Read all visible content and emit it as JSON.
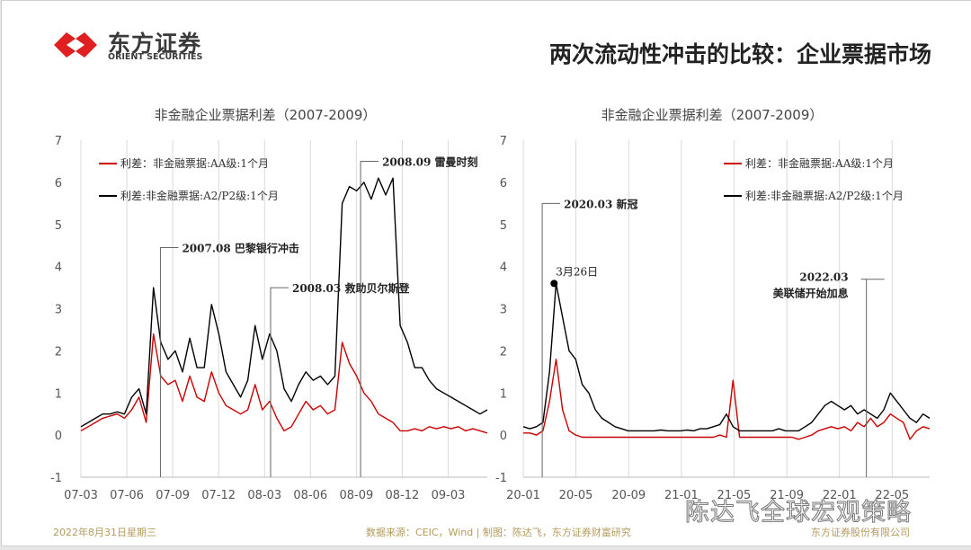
{
  "header": {
    "brand_cn": "东方证券",
    "brand_en": "ORIENT SECURITIES",
    "title": "两次流动性冲击的比较：企业票据市场"
  },
  "footer": {
    "date": "2022年8月31日星期三",
    "source": "数据来源：CEIC，Wind | 制图：陈达飞，东方证券财富研究",
    "company": "东方证券股份有限公司",
    "watermark": "陈达飞全球宏观策略"
  },
  "colors": {
    "red": "#cc0000",
    "black": "#000000",
    "grid": "#d9d9d9"
  },
  "chart_data": [
    {
      "type": "line",
      "title": "非金融企业票据利差（2007-2009）",
      "ylim": [
        -1,
        7
      ],
      "yticks": [
        "-1",
        "0",
        "1",
        "2",
        "3",
        "4",
        "5",
        "6",
        "7"
      ],
      "xlim": [
        2007.167,
        2009.38
      ],
      "xticks": [
        {
          "x": 2007.167,
          "label": "07-03"
        },
        {
          "x": 2007.417,
          "label": "07-06"
        },
        {
          "x": 2007.667,
          "label": "07-09"
        },
        {
          "x": 2007.917,
          "label": "07-12"
        },
        {
          "x": 2008.167,
          "label": "08-03"
        },
        {
          "x": 2008.417,
          "label": "08-06"
        },
        {
          "x": 2008.667,
          "label": "08-09"
        },
        {
          "x": 2008.917,
          "label": "08-12"
        },
        {
          "x": 2009.167,
          "label": "09-03"
        }
      ],
      "legend": "top-left",
      "series": [
        {
          "name": "利差：非金融票据:AA级:1个月",
          "color": "#cc0000",
          "x_start": 2007.167,
          "x_end": 2009.38,
          "values": [
            0.1,
            0.2,
            0.3,
            0.4,
            0.45,
            0.5,
            0.4,
            0.6,
            0.9,
            0.3,
            2.4,
            1.4,
            1.2,
            1.3,
            0.8,
            1.4,
            0.9,
            0.8,
            1.5,
            1.0,
            0.7,
            0.6,
            0.5,
            0.6,
            1.2,
            0.6,
            0.8,
            0.4,
            0.1,
            0.2,
            0.5,
            0.8,
            0.6,
            0.7,
            0.5,
            0.6,
            2.2,
            1.7,
            1.4,
            1.0,
            0.8,
            0.5,
            0.4,
            0.3,
            0.1,
            0.1,
            0.15,
            0.1,
            0.2,
            0.15,
            0.2,
            0.15,
            0.2,
            0.1,
            0.15,
            0.1,
            0.05
          ]
        },
        {
          "name": "利差:非金融票据:A2/P2级:1个月",
          "color": "#000000",
          "x_start": 2007.167,
          "x_end": 2009.38,
          "values": [
            0.2,
            0.3,
            0.4,
            0.5,
            0.5,
            0.55,
            0.5,
            0.9,
            1.1,
            0.5,
            3.5,
            2.2,
            1.8,
            2.0,
            1.5,
            2.3,
            1.6,
            1.6,
            3.1,
            2.4,
            1.5,
            1.2,
            0.9,
            1.3,
            2.6,
            1.8,
            2.4,
            2.0,
            1.1,
            0.8,
            1.2,
            1.5,
            1.3,
            1.4,
            1.2,
            1.4,
            5.5,
            5.9,
            5.8,
            6.0,
            5.6,
            6.1,
            5.7,
            6.1,
            2.6,
            2.2,
            1.6,
            1.6,
            1.3,
            1.1,
            1.0,
            0.9,
            0.8,
            0.7,
            0.6,
            0.5,
            0.6
          ]
        }
      ],
      "annotations": [
        {
          "x": 2007.6,
          "y": 4.45,
          "label": "2007.08 巴黎银行冲击"
        },
        {
          "x": 2008.2,
          "y": 3.5,
          "label": "2008.03 救助贝尔斯登"
        },
        {
          "x": 2008.69,
          "y": 6.5,
          "label": "2008.09 雷曼时刻"
        }
      ]
    },
    {
      "type": "line",
      "title": "非金融企业票据利差（2007-2009）",
      "ylim": [
        -1,
        7
      ],
      "yticks": [
        "-1",
        "0",
        "1",
        "2",
        "3",
        "4",
        "5",
        "6",
        "7"
      ],
      "xlim": [
        2020.0,
        2022.57
      ],
      "xticks": [
        {
          "x": 2020.0,
          "label": "20-01"
        },
        {
          "x": 2020.333,
          "label": "20-05"
        },
        {
          "x": 2020.667,
          "label": "20-09"
        },
        {
          "x": 2021.0,
          "label": "21-01"
        },
        {
          "x": 2021.333,
          "label": "21-05"
        },
        {
          "x": 2021.667,
          "label": "21-09"
        },
        {
          "x": 2022.0,
          "label": "22-01"
        },
        {
          "x": 2022.333,
          "label": "22-05"
        }
      ],
      "legend": "top-right",
      "series": [
        {
          "name": "利差：非金融票据:AA级:1个月",
          "color": "#cc0000",
          "x_start": 2020.0,
          "x_end": 2022.57,
          "values": [
            0.05,
            0.05,
            0.0,
            0.1,
            0.8,
            1.8,
            0.6,
            0.1,
            0,
            -0.05,
            -0.05,
            -0.05,
            -0.05,
            -0.05,
            -0.05,
            -0.05,
            -0.05,
            -0.05,
            -0.05,
            -0.05,
            -0.05,
            -0.05,
            -0.05,
            -0.05,
            -0.05,
            -0.05,
            -0.05,
            -0.05,
            -0.05,
            -0.05,
            0.0,
            -0.05,
            1.3,
            -0.05,
            -0.05,
            -0.05,
            -0.05,
            -0.05,
            -0.05,
            -0.05,
            -0.05,
            -0.05,
            -0.1,
            -0.05,
            0.0,
            0.1,
            0.15,
            0.2,
            0.15,
            0.2,
            0.1,
            0.3,
            0.2,
            0.4,
            0.2,
            0.3,
            0.5,
            0.4,
            0.3,
            -0.1,
            0.1,
            0.2,
            0.15
          ]
        },
        {
          "name": "利差:非金融票据:A2/P2级:1个月",
          "color": "#000000",
          "x_start": 2020.0,
          "x_end": 2022.57,
          "values": [
            0.2,
            0.15,
            0.2,
            0.3,
            1.5,
            3.6,
            2.8,
            2.0,
            1.8,
            1.2,
            1.0,
            0.6,
            0.4,
            0.3,
            0.2,
            0.15,
            0.1,
            0.1,
            0.1,
            0.1,
            0.1,
            0.12,
            0.1,
            0.1,
            0.1,
            0.12,
            0.1,
            0.15,
            0.15,
            0.2,
            0.25,
            0.5,
            0.2,
            0.1,
            0.1,
            0.1,
            0.1,
            0.1,
            0.1,
            0.15,
            0.1,
            0.1,
            0.1,
            0.2,
            0.3,
            0.5,
            0.7,
            0.8,
            0.7,
            0.6,
            0.7,
            0.5,
            0.6,
            0.5,
            0.4,
            0.6,
            1.0,
            0.8,
            0.6,
            0.4,
            0.3,
            0.5,
            0.4
          ]
        }
      ],
      "annotations": [
        {
          "x": 2020.12,
          "y": 5.5,
          "label": "2020.03 新冠"
        },
        {
          "x": 2022.17,
          "y": 3.7,
          "label": "2022.03",
          "label2": "美联储开始加息"
        }
      ],
      "point_marker": {
        "x": 2020.195,
        "y": 3.6,
        "label": "3月26日"
      }
    }
  ]
}
